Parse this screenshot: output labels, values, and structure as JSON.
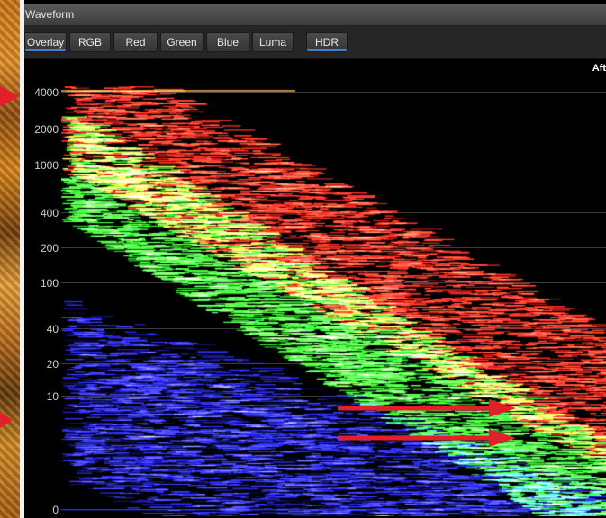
{
  "window": {
    "title": "Waveform"
  },
  "tabs": [
    {
      "label": "Overlay",
      "active": true
    },
    {
      "label": "RGB",
      "active": false
    },
    {
      "label": "Red",
      "active": false
    },
    {
      "label": "Green",
      "active": false
    },
    {
      "label": "Blue",
      "active": false
    },
    {
      "label": "Luma",
      "active": false
    },
    {
      "label": "HDR",
      "active": true
    }
  ],
  "plot": {
    "corner_label": "Aft",
    "y_ticks": [
      "4000",
      "2000",
      "1000",
      "400",
      "200",
      "100",
      "40",
      "20",
      "10",
      "0"
    ]
  },
  "colors": {
    "red_trace": "#e0261e",
    "green_trace": "#2fd12a",
    "blue_trace": "#2a2ae0",
    "annotation_arrow": "#e3202a",
    "active_tab_underline": "#3d82d6"
  }
}
